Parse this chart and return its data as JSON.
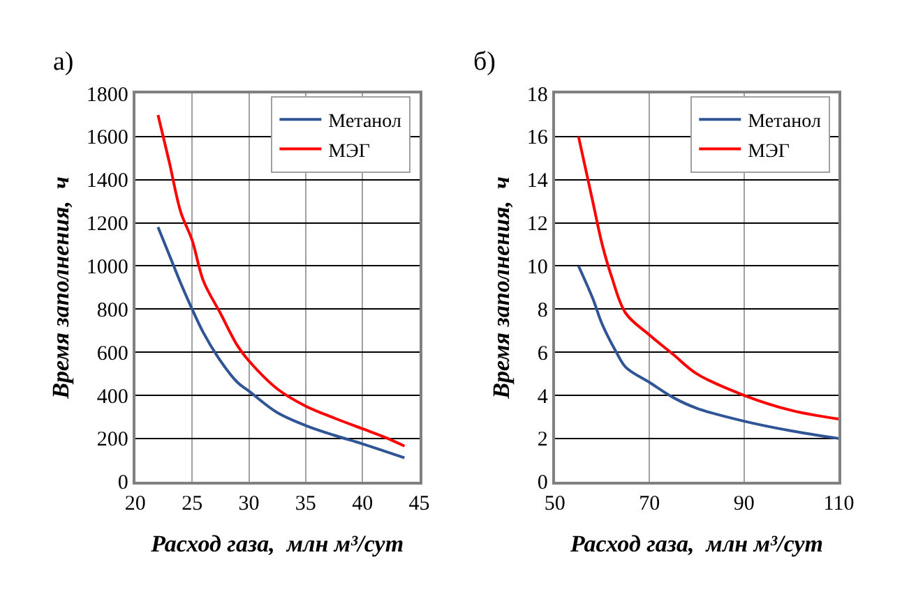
{
  "chart_data": [
    {
      "type": "line",
      "title": "а)",
      "xlabel": "Расход газа,  млн м³/сут",
      "ylabel": "Время заполнения,  ч",
      "xlim": [
        20,
        45
      ],
      "xticks": [
        20,
        25,
        30,
        35,
        40,
        45
      ],
      "ylim": [
        0,
        1800
      ],
      "yticks": [
        0,
        200,
        400,
        600,
        800,
        1000,
        1200,
        1400,
        1600,
        1800
      ],
      "grid": true,
      "legend": "top right",
      "series": [
        {
          "name": "Метанол",
          "color": "#2f5597",
          "x": [
            22,
            23,
            24,
            25,
            26,
            27.5,
            29,
            30,
            32.5,
            35,
            37.5,
            40,
            42,
            43.7
          ],
          "values": [
            1180,
            1050,
            920,
            800,
            690,
            560,
            460,
            420,
            320,
            260,
            215,
            175,
            140,
            110
          ]
        },
        {
          "name": "МЭГ",
          "color": "#ff0000",
          "x": [
            22,
            23,
            24,
            25,
            26,
            27.5,
            29,
            30,
            32.5,
            35,
            37.5,
            40,
            42,
            43.7
          ],
          "values": [
            1700,
            1480,
            1250,
            1120,
            930,
            780,
            630,
            560,
            430,
            350,
            295,
            245,
            205,
            165
          ]
        }
      ]
    },
    {
      "type": "line",
      "title": "б)",
      "xlabel": "Расход газа,  млн м³/сут",
      "ylabel": "Время заполнения,  ч",
      "xlim": [
        50,
        110
      ],
      "xticks": [
        50,
        70,
        90,
        110
      ],
      "ylim": [
        0,
        18
      ],
      "yticks": [
        0,
        2,
        4,
        6,
        8,
        10,
        12,
        14,
        16,
        18
      ],
      "grid": true,
      "legend": "top right",
      "series": [
        {
          "name": "Метанол",
          "color": "#2f5597",
          "x": [
            55,
            58,
            60,
            63,
            65,
            70,
            75,
            80,
            90,
            100,
            110
          ],
          "values": [
            10,
            8.5,
            7.3,
            6.0,
            5.3,
            4.6,
            3.9,
            3.4,
            2.8,
            2.35,
            2.0
          ]
        },
        {
          "name": "МЭГ",
          "color": "#ff0000",
          "x": [
            55,
            58,
            60,
            62,
            65,
            70,
            75,
            80,
            90,
            100,
            110
          ],
          "values": [
            16,
            13,
            11,
            9.5,
            7.8,
            6.8,
            5.9,
            5.0,
            4.0,
            3.3,
            2.9
          ]
        }
      ]
    }
  ]
}
